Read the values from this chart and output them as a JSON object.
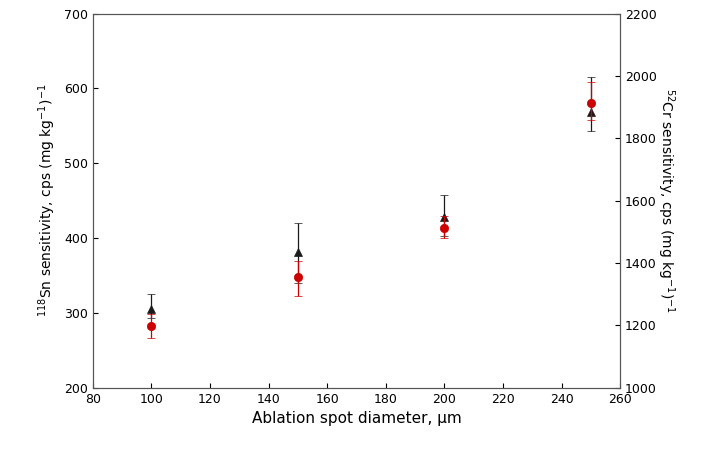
{
  "x": [
    100,
    150,
    200,
    250
  ],
  "sn_values": [
    282,
    348,
    413,
    580
  ],
  "sn_err_up": [
    17,
    22,
    17,
    28
  ],
  "sn_err_dn": [
    15,
    25,
    13,
    22
  ],
  "bk_values": [
    305,
    382,
    428,
    568
  ],
  "bk_err_up": [
    20,
    38,
    30,
    47
  ],
  "bk_err_dn": [
    12,
    42,
    25,
    25
  ],
  "xlim": [
    80,
    260
  ],
  "xticks": [
    80,
    100,
    120,
    140,
    160,
    180,
    200,
    220,
    240,
    260
  ],
  "xlabel": "Ablation spot diameter, μm",
  "ylim_left": [
    200,
    700
  ],
  "yticks_left": [
    200,
    300,
    400,
    500,
    600,
    700
  ],
  "ylabel_left": "$^{118}$Sn sensitivity, cps (mg kg$^{-1}$)$^{-1}$",
  "ylim_right": [
    1000,
    2200
  ],
  "yticks_right": [
    1000,
    1200,
    1400,
    1600,
    1800,
    2000,
    2200
  ],
  "ylabel_right": "$^{52}$Cr sensitivity, cps (mg kg$^{-1}$)$^{-1}$",
  "red_color": "#cc0000",
  "black_color": "#1a1a1a",
  "markersize": 6,
  "capsize": 3,
  "elinewidth": 0.9,
  "markeredge": 0.5,
  "background": "#ffffff",
  "tick_fontsize": 9,
  "label_fontsize": 10,
  "xlabel_fontsize": 11
}
